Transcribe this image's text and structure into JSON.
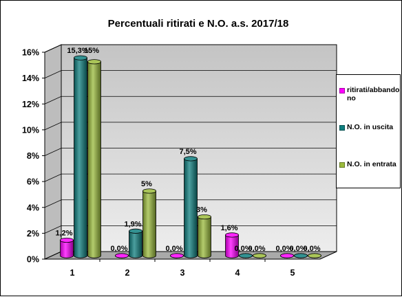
{
  "chart_data": {
    "type": "bar",
    "title": "Percentuali  ritirati  e N.O. a.s. 2017/18",
    "xlabel": "",
    "ylabel": "",
    "categories": [
      "1",
      "2",
      "3",
      "4",
      "5"
    ],
    "ylim": [
      0,
      16
    ],
    "yticks": [
      "0%",
      "2%",
      "4%",
      "6%",
      "8%",
      "10%",
      "12%",
      "14%",
      "16%"
    ],
    "series": [
      {
        "name": "ritirati/abbandono",
        "values": [
          1.2,
          0.0,
          0.0,
          1.6,
          0.0
        ],
        "labels": [
          "1,2%",
          "0,0%",
          "0,0%",
          "1,6%",
          "0,0%"
        ],
        "color": "#ff00ff"
      },
      {
        "name": "N.O. in uscita",
        "values": [
          15.3,
          1.9,
          7.5,
          0.0,
          0.0
        ],
        "labels": [
          "15,3%",
          "1,9%",
          "7,5%",
          "0,0%",
          "0,0%"
        ],
        "color": "#0f7f7f"
      },
      {
        "name": "N.O. in entrata",
        "values": [
          15.0,
          5.0,
          3.0,
          0.0,
          0.0
        ],
        "labels": [
          "15%",
          "5%",
          "3%",
          "0,0%",
          "0,0%"
        ],
        "color": "#9bbb3c"
      }
    ],
    "legend_position": "right",
    "grid": true,
    "chart_style": "3d-cylinder"
  }
}
